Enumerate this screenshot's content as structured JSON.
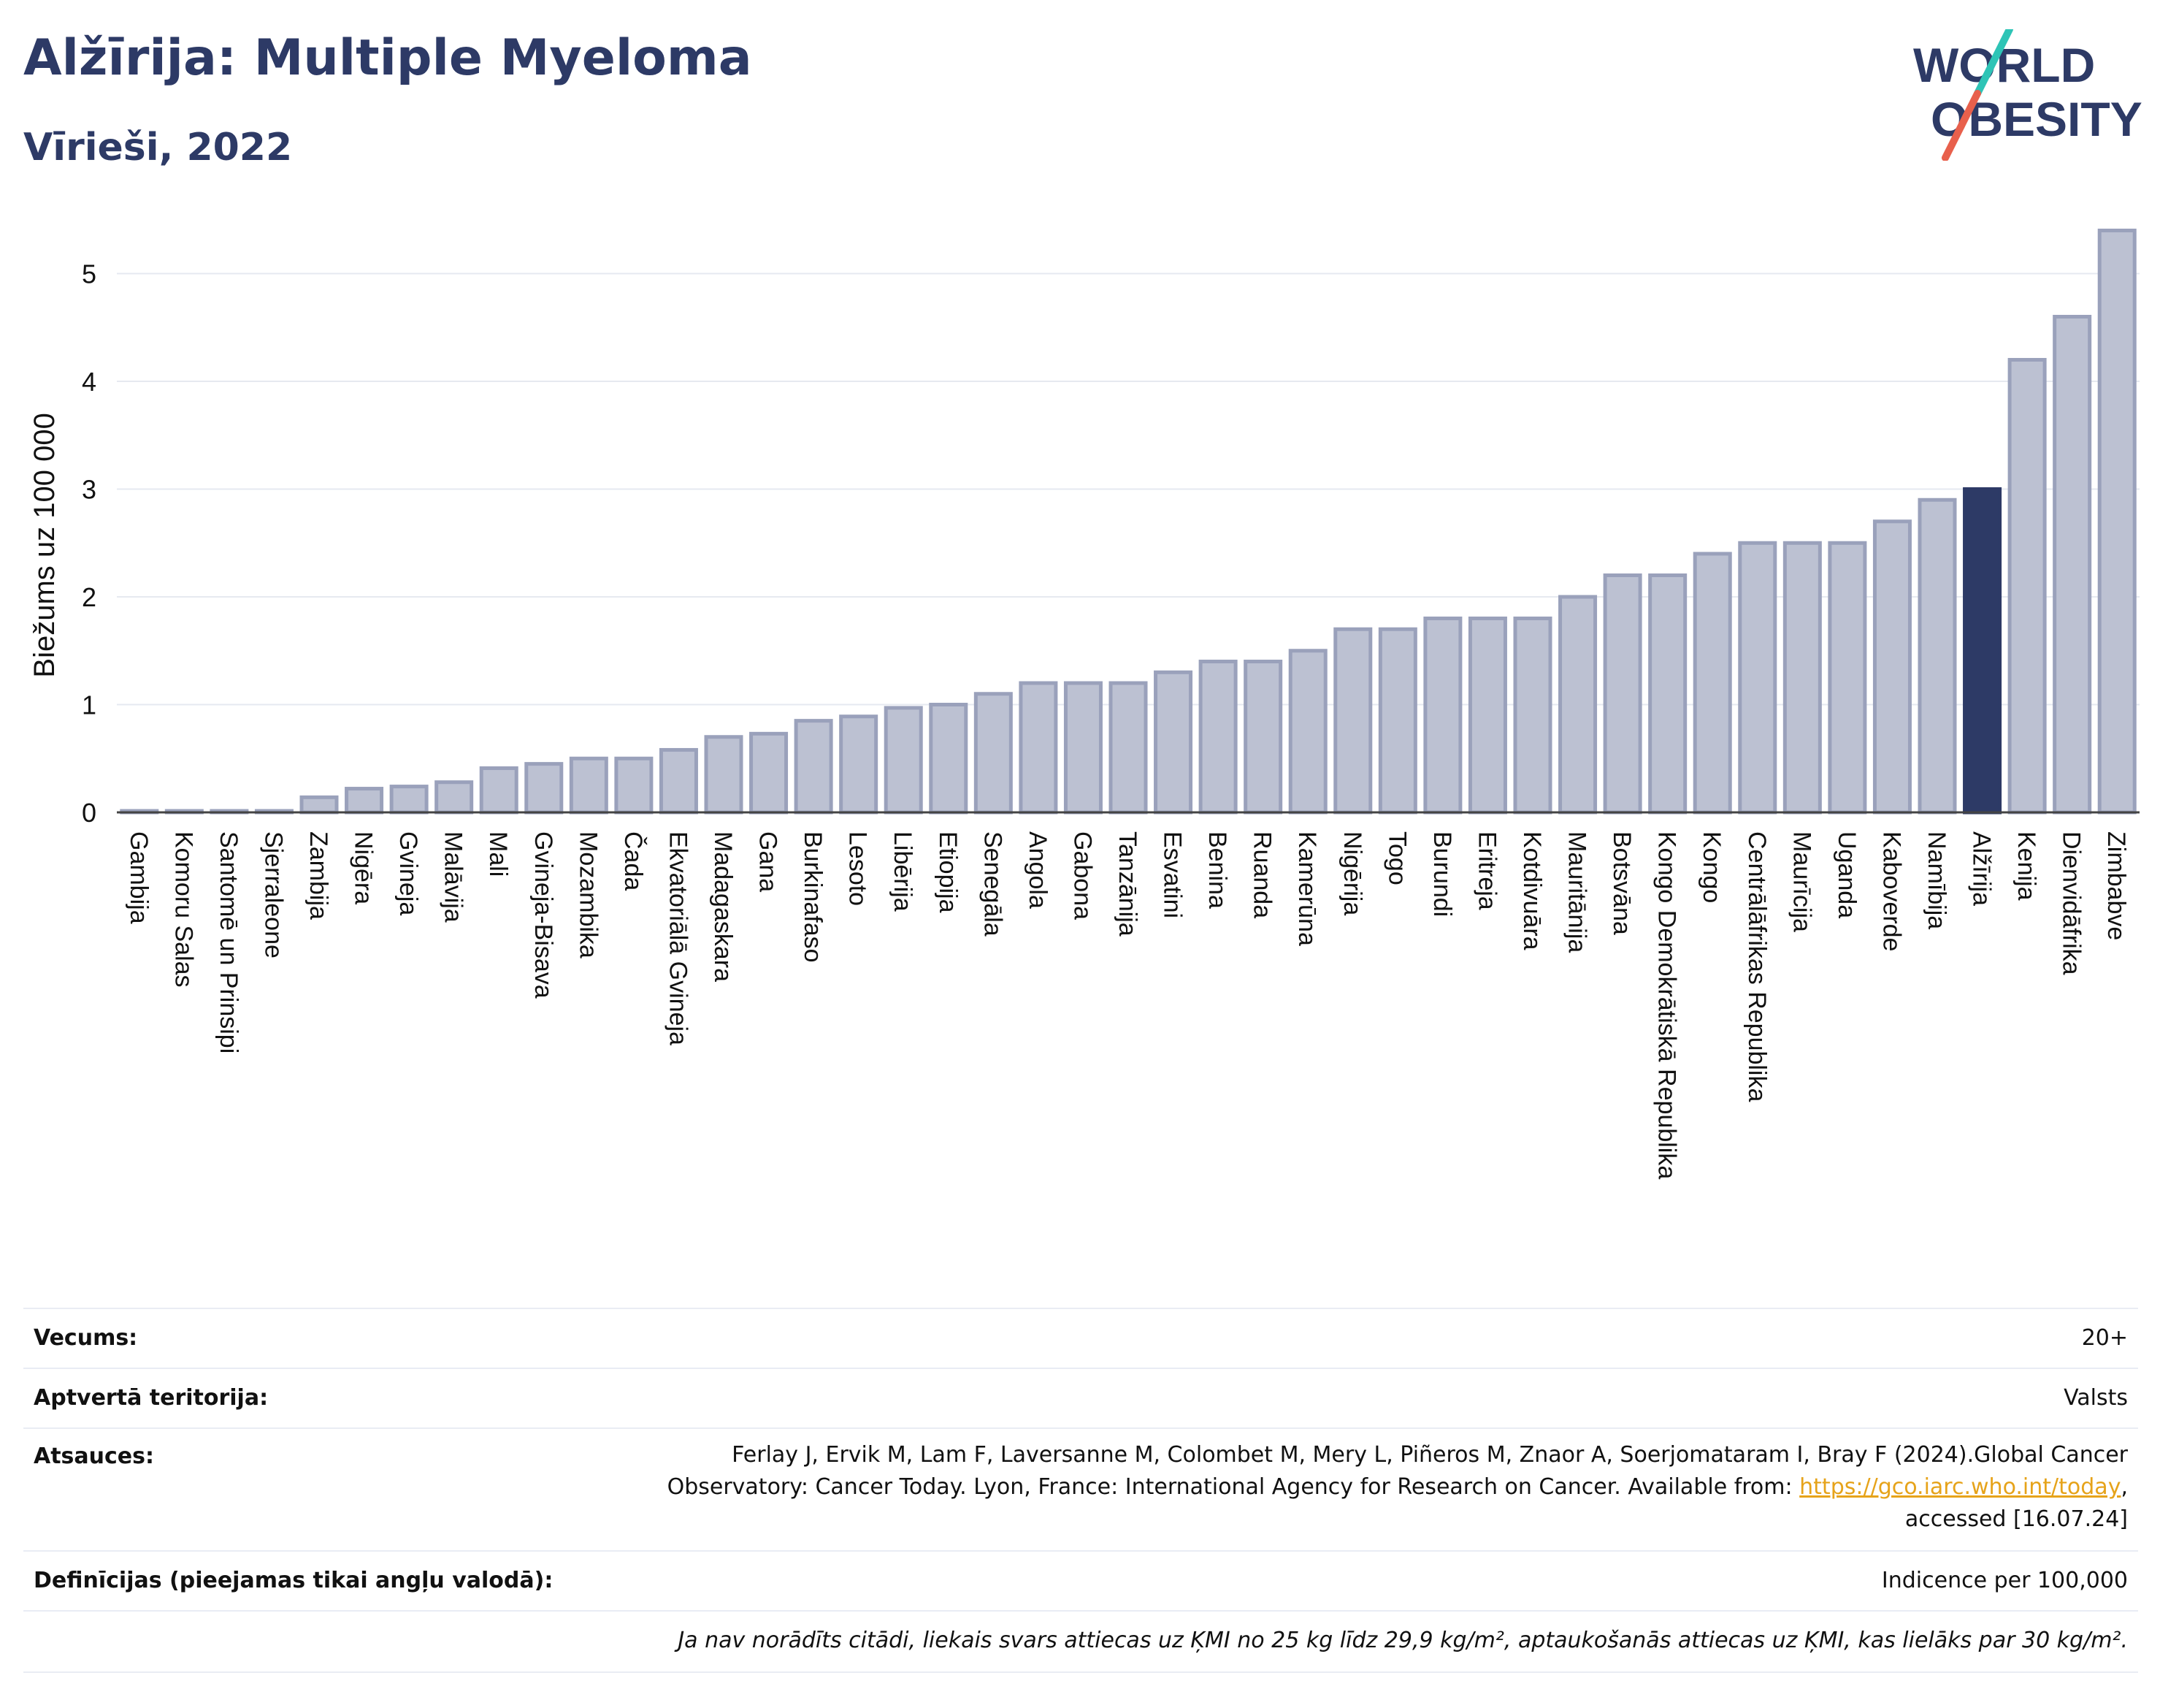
{
  "title": "Alžīrija: Multiple Myeloma",
  "subtitle": "Vīrieši, 2022",
  "logo": {
    "line1": "WORLD",
    "line2": "OBESITY",
    "slash_colors": [
      "#2ec4b6",
      "#e8604c"
    ]
  },
  "colors": {
    "bar": "#bcc1d2",
    "bar_edge": "#9aa1bb",
    "highlight": "#2d3a66",
    "title": "#2d3a66",
    "grid": "#e6e9f0",
    "link": "#e6a31a"
  },
  "chart_data": {
    "type": "bar",
    "ylabel": "Biežums uz 100 000",
    "ylim": [
      0,
      5.5
    ],
    "yticks": [
      0,
      1,
      2,
      3,
      4,
      5
    ],
    "grid": true,
    "highlight": "Alžīrija",
    "categories": [
      "Gambija",
      "Komoru Salas",
      "Santomē un Prinsipi",
      "Sjerraleone",
      "Zambija",
      "Nigēra",
      "Gvineja",
      "Malāvija",
      "Mali",
      "Gvineja-Bisava",
      "Mozambika",
      "Čada",
      "Ekvatoriālā Gvineja",
      "Madagaskara",
      "Gana",
      "Burkinafaso",
      "Lesoto",
      "Libērija",
      "Etiopija",
      "Senegāla",
      "Angola",
      "Gabona",
      "Tanzānija",
      "Esvatini",
      "Benina",
      "Ruanda",
      "Kamerūna",
      "Nigērija",
      "Togo",
      "Burundi",
      "Eritreja",
      "Kotdivuāra",
      "Mauritānija",
      "Botsvāna",
      "Kongo Demokrātiskā Republika",
      "Kongo",
      "Centrālāfrikas Republika",
      "Maurīcija",
      "Uganda",
      "Kaboverde",
      "Namībija",
      "Alžīrija",
      "Kenija",
      "Dienvidāfrika",
      "Zimbabve"
    ],
    "values": [
      0.01,
      0.01,
      0.01,
      0.01,
      0.14,
      0.22,
      0.24,
      0.28,
      0.41,
      0.45,
      0.5,
      0.5,
      0.58,
      0.7,
      0.73,
      0.85,
      0.89,
      0.97,
      1.0,
      1.1,
      1.2,
      1.2,
      1.2,
      1.3,
      1.4,
      1.4,
      1.5,
      1.7,
      1.7,
      1.8,
      1.8,
      1.8,
      2.0,
      2.2,
      2.2,
      2.4,
      2.5,
      2.5,
      2.5,
      2.7,
      2.9,
      3.0,
      4.2,
      4.6,
      5.4
    ]
  },
  "meta": {
    "age_label": "Vecums:",
    "age_value": "20+",
    "area_label": "Aptvertā teritorija:",
    "area_value": "Valsts",
    "refs_label": "Atsauces:",
    "refs_line1": "Ferlay J, Ervik M, Lam F, Laversanne M, Colombet M, Mery L, Piñeros M, Znaor A, Soerjomataram I, Bray F (2024).Global Cancer",
    "refs_line2": "Observatory: Cancer Today. Lyon, France: International Agency for Research on Cancer. Available from: ",
    "refs_link": "https://gco.iarc.who.int/today",
    "refs_line2_end": ",",
    "refs_line3": "accessed [16.07.24]",
    "defs_label": "Definīcijas (pieejamas tikai angļu valodā):",
    "defs_value": "Indicence per 100,000",
    "note": "Ja nav norādīts citādi, liekais svars attiecas uz ĶMI no 25 kg līdz 29,9 kg/m², aptaukošanās attiecas uz ĶMI, kas lielāks par 30 kg/m²."
  }
}
